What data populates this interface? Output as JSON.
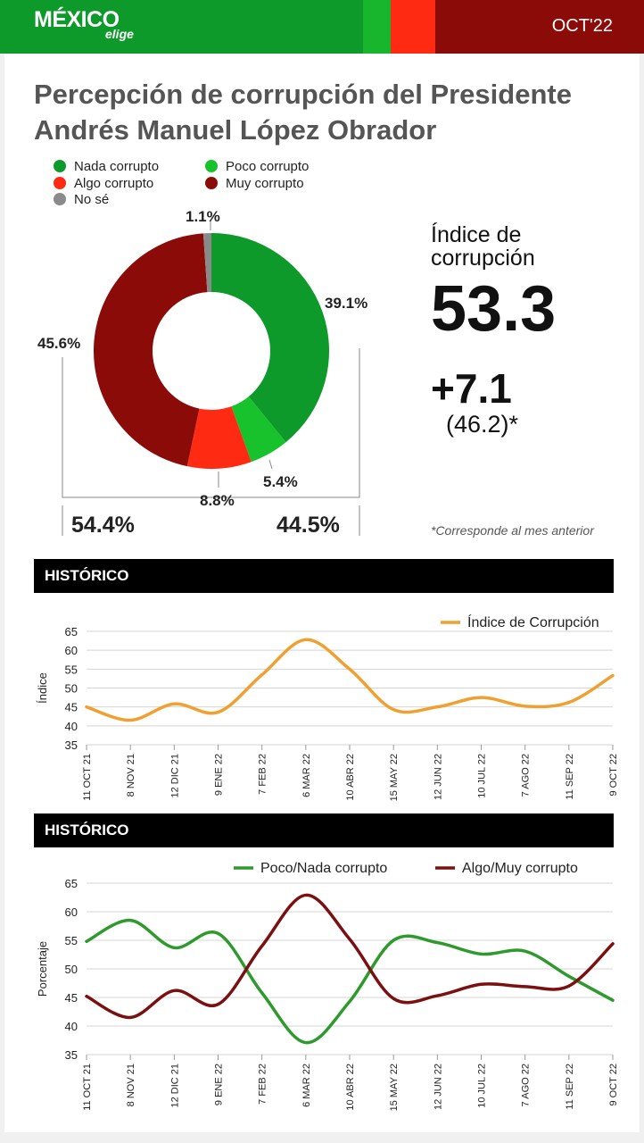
{
  "header": {
    "logo_main": "MÉXICO",
    "logo_sub": "elige",
    "date": "OCT'22",
    "colors": {
      "dark_green": "#0e9a2a",
      "light_green": "#18b62c",
      "red": "#ff2a12",
      "dark_red": "#8b0b08"
    }
  },
  "title": "Percepción de corrupción del Presidente Andrés Manuel López Obrador",
  "legend": [
    {
      "label": "Nada corrupto",
      "color": "#0e9a2a"
    },
    {
      "label": "Poco corrupto",
      "color": "#18c22c"
    },
    {
      "label": "Algo corrupto",
      "color": "#ff2a12"
    },
    {
      "label": "Muy corrupto",
      "color": "#8b0b08"
    },
    {
      "label": "No sé",
      "color": "#8a8a8a"
    }
  ],
  "donut_labels": {
    "nada": "39.1%",
    "poco": "5.4%",
    "algo": "8.8%",
    "muy": "45.6%",
    "nose": "1.1%"
  },
  "totals": {
    "left": "54.4%",
    "right": "44.5%"
  },
  "index": {
    "label": "Índice de corrupción",
    "value": "53.3",
    "delta": "+7.1",
    "previous": "(46.2)*",
    "note": "*Corresponde al mes anterior"
  },
  "section1": {
    "title": "HISTÓRICO"
  },
  "section2": {
    "title": "HISTÓRICO"
  },
  "chart_data": [
    {
      "type": "pie",
      "categories": [
        "Nada corrupto",
        "Poco corrupto",
        "Algo corrupto",
        "Muy corrupto",
        "No sé"
      ],
      "values": [
        39.1,
        5.4,
        8.8,
        45.6,
        1.1
      ],
      "colors": [
        "#0e9a2a",
        "#18c22c",
        "#ff2a12",
        "#8b0b08",
        "#8a8a8a"
      ]
    },
    {
      "type": "line",
      "title": "",
      "ylabel": "Índice",
      "ylim": [
        35,
        65
      ],
      "yticks": [
        35,
        40,
        45,
        50,
        55,
        60,
        65
      ],
      "categories": [
        "11 OCT 21",
        "8 NOV 21",
        "12 DIC 21",
        "9 ENE 22",
        "7 FEB 22",
        "6 MAR 22",
        "10 ABR 22",
        "15 MAY 22",
        "12 JUN 22",
        "10 JUL 22",
        "7 AGO 22",
        "11 SEP 22",
        "9 OCT 22"
      ],
      "series": [
        {
          "name": "Índice de Corrupción",
          "color": "#f0a030",
          "values": [
            45.0,
            41.5,
            45.8,
            43.6,
            53.5,
            62.8,
            55.0,
            44.3,
            45.0,
            47.5,
            45.2,
            46.2,
            53.3
          ]
        }
      ],
      "grid": true,
      "legend": "top-right"
    },
    {
      "type": "line",
      "title": "",
      "ylabel": "Porcentaje",
      "ylim": [
        35,
        65
      ],
      "yticks": [
        35,
        40,
        45,
        50,
        55,
        60,
        65
      ],
      "categories": [
        "11 OCT 21",
        "8 NOV 21",
        "12 DIC 21",
        "9 ENE 22",
        "7 FEB 22",
        "6 MAR 22",
        "10 ABR 22",
        "15 MAY 22",
        "12 JUN 22",
        "10 JUL 22",
        "7 AGO 22",
        "11 SEP 22",
        "9 OCT 22"
      ],
      "series": [
        {
          "name": "Poco/Nada corrupto",
          "color": "#2e9a2e",
          "values": [
            54.8,
            58.5,
            53.7,
            56.2,
            45.8,
            37.1,
            44.3,
            55.0,
            54.6,
            52.6,
            53.1,
            48.7,
            44.5
          ]
        },
        {
          "name": "Algo/Muy corrupto",
          "color": "#7a1010",
          "values": [
            45.2,
            41.5,
            46.2,
            43.8,
            54.0,
            62.9,
            55.2,
            44.8,
            45.3,
            47.3,
            46.9,
            47.0,
            54.4
          ]
        }
      ],
      "grid": true,
      "legend": "top-right"
    }
  ]
}
